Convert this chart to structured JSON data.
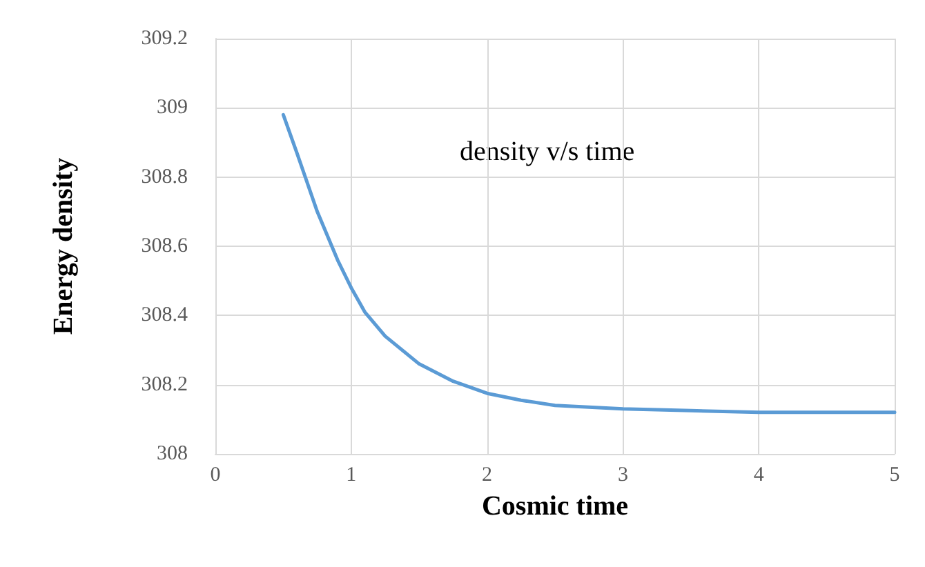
{
  "chart_data": {
    "type": "line",
    "xlabel": "Cosmic time",
    "ylabel": "Energy density",
    "annotations": [
      "density v/s time"
    ],
    "x": [
      0.5,
      0.6,
      0.75,
      0.9,
      1.0,
      1.1,
      1.25,
      1.5,
      1.75,
      2,
      2.25,
      2.5,
      3,
      3.5,
      4,
      4.5,
      5
    ],
    "series": [
      {
        "color": "#5b9bd5",
        "values": [
          308.98,
          308.87,
          308.7,
          308.56,
          308.48,
          308.41,
          308.34,
          308.26,
          308.21,
          308.175,
          308.155,
          308.14,
          308.13,
          308.125,
          308.12,
          308.12,
          308.12
        ]
      }
    ],
    "xlim": [
      0,
      5
    ],
    "xticks": [
      0,
      1,
      2,
      3,
      4,
      5
    ],
    "ylim": [
      308,
      309.2
    ],
    "yticks": [
      308,
      308.2,
      308.4,
      308.6,
      308.8,
      309,
      309.2
    ],
    "grid": true,
    "marker": "none",
    "line_style": "solid"
  }
}
